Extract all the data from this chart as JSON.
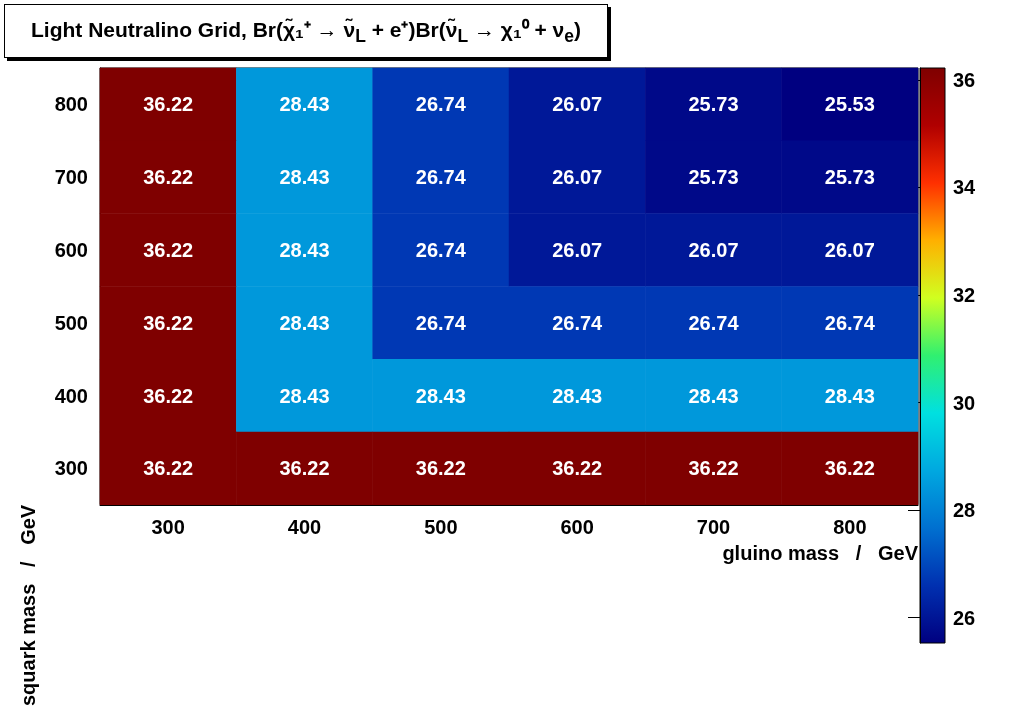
{
  "chart_data": {
    "type": "heatmap",
    "title": "Light Neutralino Grid, Br(χ̃₁⁺ → ν̃$_{L}$ + e⁺)Br(ν̃$_{L}$ → χ₁⁰ + ν$_{e}$)",
    "xlabel": "gluino mass   /   GeV",
    "ylabel": "squark mass   /   GeV",
    "categories": [
      "300",
      "400",
      "500",
      "600",
      "700",
      "800"
    ],
    "y_categories": [
      "800",
      "700",
      "600",
      "500",
      "400",
      "300"
    ],
    "cells": [
      [
        36.22,
        28.43,
        26.74,
        26.07,
        25.73,
        25.53
      ],
      [
        36.22,
        28.43,
        26.74,
        26.07,
        25.73,
        25.73
      ],
      [
        36.22,
        28.43,
        26.74,
        26.07,
        26.07,
        26.07
      ],
      [
        36.22,
        28.43,
        26.74,
        26.74,
        26.74,
        26.74
      ],
      [
        36.22,
        28.43,
        28.43,
        28.43,
        28.43,
        28.43
      ],
      [
        36.22,
        36.22,
        36.22,
        36.22,
        36.22,
        36.22
      ]
    ],
    "clim": [
      25.53,
      36.22
    ],
    "cticks": [
      26,
      28,
      30,
      32,
      34,
      36
    ],
    "data_labels": true
  }
}
